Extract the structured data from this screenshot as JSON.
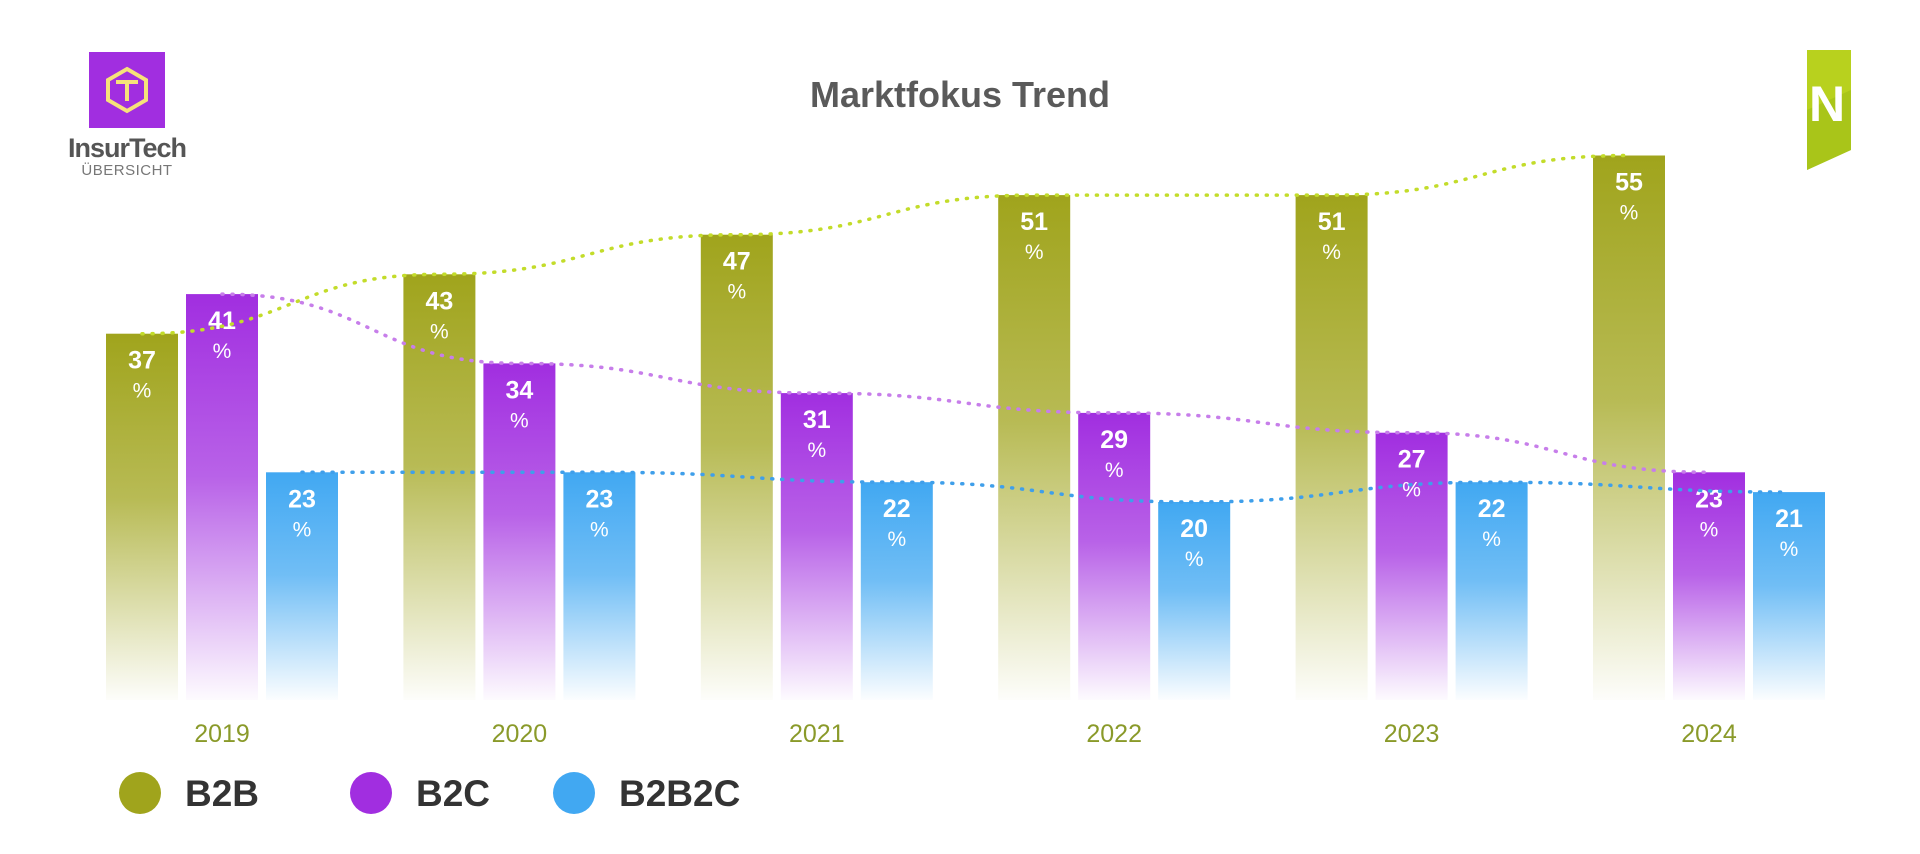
{
  "header": {
    "title": "Marktfokus Trend",
    "brand_name": "InsurTech",
    "brand_sub": "ÜBERSICHT",
    "brand_right_glyph": "N"
  },
  "colors": {
    "b2b": "#a0a41c",
    "b2c": "#a12ee0",
    "b2b2c": "#41a8f2",
    "b2b_trend": "#c3dc2a",
    "b2c_trend": "#c77eea",
    "b2b2c_trend": "#3f9fea",
    "year_label": "#8a9a2a"
  },
  "chart_data": {
    "type": "bar",
    "title": "Marktfokus Trend",
    "categories": [
      "2019",
      "2020",
      "2021",
      "2022",
      "2023",
      "2024"
    ],
    "unit": "%",
    "series": [
      {
        "name": "B2B",
        "values": [
          37,
          43,
          47,
          51,
          51,
          55
        ]
      },
      {
        "name": "B2C",
        "values": [
          41,
          34,
          31,
          29,
          27,
          23
        ]
      },
      {
        "name": "B2B2C",
        "values": [
          23,
          23,
          22,
          20,
          22,
          21
        ]
      }
    ],
    "ylim": [
      0,
      55
    ],
    "grid": false,
    "trendlines": true,
    "legend": "bottom-left"
  }
}
